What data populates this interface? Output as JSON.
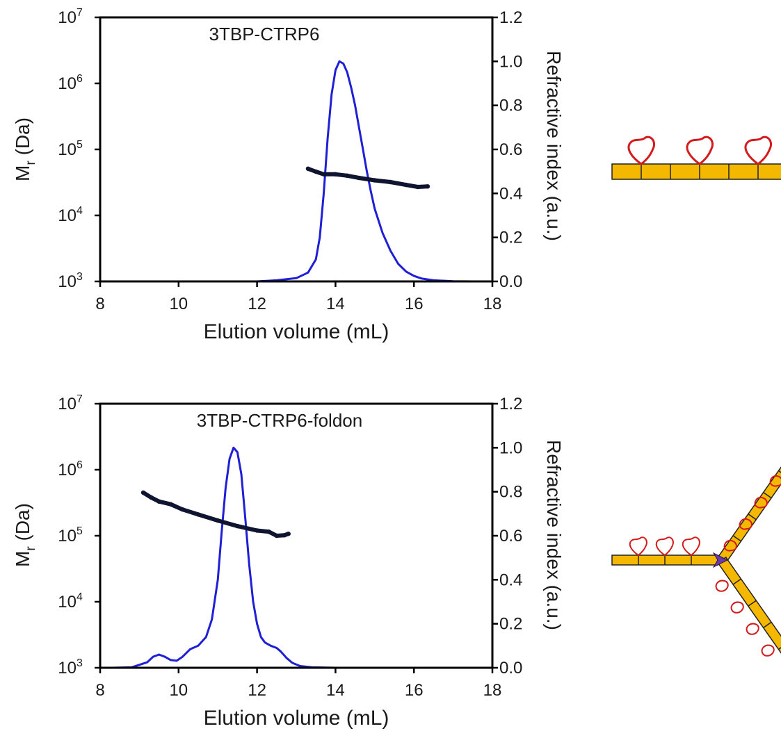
{
  "chart_data": [
    {
      "type": "line",
      "title": "3TBP-CTRP6",
      "xlabel": "Elution volume (mL)",
      "ylabel_left": {
        "main": "M",
        "sub": "r",
        "rest": " (Da)"
      },
      "ylabel_right": "Refractive index (a.u.)",
      "xlim": [
        8,
        18
      ],
      "xticks": [
        8,
        10,
        12,
        14,
        16,
        18
      ],
      "ylim_left": [
        1000,
        10000000
      ],
      "yscale_left": "log",
      "yticks_left": [
        {
          "value": 1000,
          "base": "10",
          "exp": "3"
        },
        {
          "value": 10000,
          "base": "10",
          "exp": "4"
        },
        {
          "value": 100000,
          "base": "10",
          "exp": "5"
        },
        {
          "value": 1000000,
          "base": "10",
          "exp": "6"
        },
        {
          "value": 10000000,
          "base": "10",
          "exp": "7"
        }
      ],
      "ylim_right": [
        0,
        1.2
      ],
      "yticks_right": [
        "0.0",
        "0.2",
        "0.4",
        "0.6",
        "0.8",
        "1.0",
        "1.2"
      ],
      "series": [
        {
          "axis": "right",
          "color": "#1f1fd6",
          "x": [
            11.6,
            12.0,
            12.5,
            13.0,
            13.3,
            13.5,
            13.6,
            13.7,
            13.8,
            13.9,
            14.0,
            14.1,
            14.2,
            14.3,
            14.4,
            14.5,
            14.6,
            14.7,
            14.8,
            14.9,
            15.0,
            15.2,
            15.4,
            15.6,
            15.8,
            16.0,
            16.2,
            16.5,
            17.0,
            17.5,
            18.0
          ],
          "y": [
            0.0,
            0.0,
            0.005,
            0.015,
            0.04,
            0.1,
            0.2,
            0.4,
            0.65,
            0.85,
            0.96,
            1.0,
            0.99,
            0.95,
            0.88,
            0.8,
            0.7,
            0.6,
            0.5,
            0.41,
            0.33,
            0.22,
            0.14,
            0.08,
            0.045,
            0.025,
            0.013,
            0.005,
            0.001,
            0.0,
            0.0
          ]
        },
        {
          "axis": "left",
          "color": "#0f1530",
          "x": [
            13.3,
            13.5,
            13.7,
            14.0,
            14.3,
            14.6,
            15.0,
            15.4,
            15.8,
            16.1,
            16.35
          ],
          "y": [
            51000,
            46000,
            42000,
            42000,
            40000,
            37000,
            34000,
            32000,
            29000,
            27000,
            27500
          ]
        }
      ]
    },
    {
      "type": "line",
      "title": "3TBP-CTRP6-foldon",
      "xlabel": "Elution volume (mL)",
      "ylabel_left": {
        "main": "M",
        "sub": "r",
        "rest": " (Da)"
      },
      "ylabel_right": "Refractive index (a.u.)",
      "xlim": [
        8,
        18
      ],
      "xticks": [
        8,
        10,
        12,
        14,
        16,
        18
      ],
      "ylim_left": [
        1000,
        10000000
      ],
      "yscale_left": "log",
      "yticks_left": [
        {
          "value": 1000,
          "base": "10",
          "exp": "3"
        },
        {
          "value": 10000,
          "base": "10",
          "exp": "4"
        },
        {
          "value": 100000,
          "base": "10",
          "exp": "5"
        },
        {
          "value": 1000000,
          "base": "10",
          "exp": "6"
        },
        {
          "value": 10000000,
          "base": "10",
          "exp": "7"
        }
      ],
      "ylim_right": [
        0,
        1.2
      ],
      "yticks_right": [
        "0.0",
        "0.2",
        "0.4",
        "0.6",
        "0.8",
        "1.0",
        "1.2"
      ],
      "series": [
        {
          "axis": "right",
          "color": "#1f1fd6",
          "x": [
            8.3,
            8.8,
            9.2,
            9.35,
            9.5,
            9.65,
            9.8,
            9.95,
            10.1,
            10.3,
            10.5,
            10.7,
            10.85,
            11.0,
            11.1,
            11.2,
            11.3,
            11.4,
            11.5,
            11.6,
            11.7,
            11.8,
            11.9,
            12.0,
            12.1,
            12.2,
            12.35,
            12.5,
            12.6,
            12.75,
            12.9,
            13.1,
            13.4,
            14.0,
            15.0
          ],
          "y": [
            0.0,
            0.002,
            0.025,
            0.05,
            0.06,
            0.05,
            0.035,
            0.032,
            0.05,
            0.085,
            0.1,
            0.14,
            0.22,
            0.4,
            0.62,
            0.82,
            0.95,
            1.0,
            0.98,
            0.88,
            0.68,
            0.47,
            0.3,
            0.2,
            0.14,
            0.115,
            0.1,
            0.09,
            0.075,
            0.045,
            0.022,
            0.008,
            0.002,
            0.0,
            0.0
          ]
        },
        {
          "axis": "left",
          "color": "#0f1530",
          "x": [
            9.1,
            9.3,
            9.5,
            9.8,
            10.1,
            10.5,
            11.0,
            11.5,
            12.0,
            12.3,
            12.5,
            12.7,
            12.8
          ],
          "y": [
            450000,
            380000,
            330000,
            300000,
            250000,
            210000,
            170000,
            140000,
            120000,
            115000,
            100000,
            102000,
            107000
          ]
        }
      ]
    }
  ],
  "schematics": [
    {
      "kind": "linear",
      "bar_color": "#f5b800",
      "loop_color": "#d41a1a"
    },
    {
      "kind": "trimer",
      "bar_color": "#f5b800",
      "loop_color": "#d41a1a",
      "hub_color": "#6a3aa8"
    }
  ]
}
